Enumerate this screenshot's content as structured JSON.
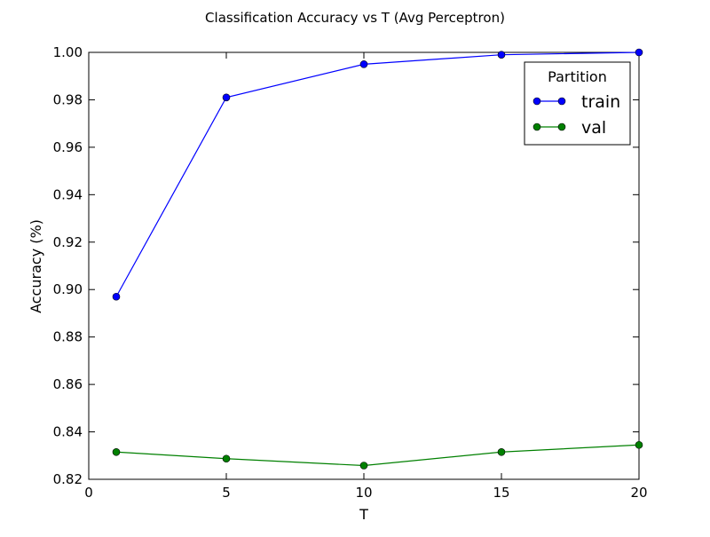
{
  "chart_data": {
    "type": "line",
    "title": "Classification Accuracy vs T (Avg Perceptron)",
    "xlabel": "T",
    "ylabel": "Accuracy (%)",
    "xlim": [
      0,
      20
    ],
    "ylim": [
      0.82,
      1.0
    ],
    "xticks": [
      "0",
      "5",
      "10",
      "15",
      "20"
    ],
    "yticks": [
      "0.82",
      "0.84",
      "0.86",
      "0.88",
      "0.90",
      "0.92",
      "0.94",
      "0.96",
      "0.98",
      "1.00"
    ],
    "grid": false,
    "legend": {
      "title": "Partition",
      "placement": "top-right"
    },
    "x": [
      1,
      5,
      10,
      15,
      20
    ],
    "series": [
      {
        "name": "train",
        "color": "#0000ff",
        "values": [
          0.897,
          0.981,
          0.995,
          0.999,
          1.0
        ]
      },
      {
        "name": "val",
        "color": "#008000",
        "values": [
          0.8315,
          0.8287,
          0.8258,
          0.8315,
          0.8345
        ]
      }
    ]
  }
}
